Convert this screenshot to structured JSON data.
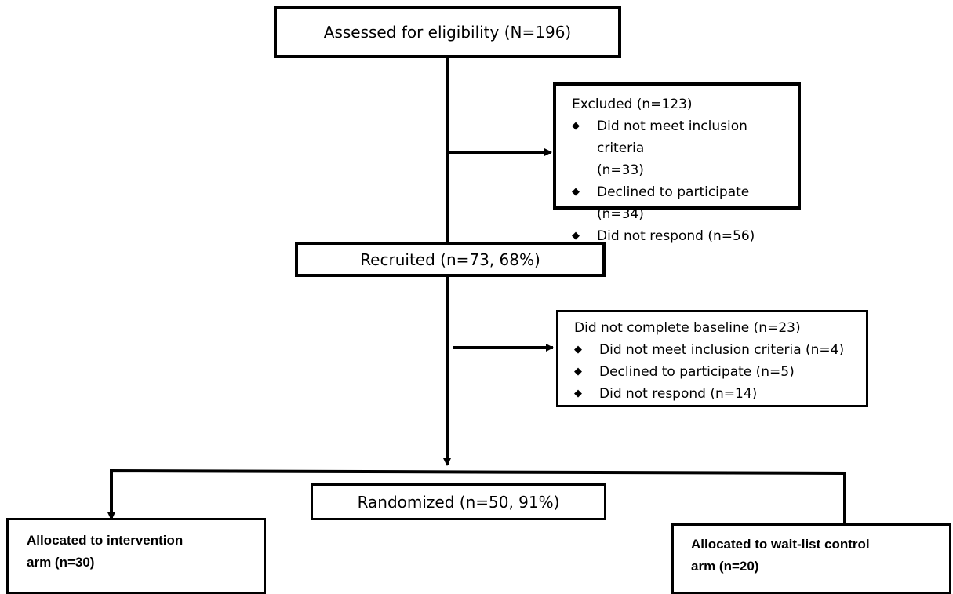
{
  "nodes": {
    "assessed": "Assessed for eligibility (N=196)",
    "recruited": "Recruited (n=73, 68%)",
    "randomized": "Randomized (n=50, 91%)"
  },
  "excluded": {
    "heading": "Excluded (n=123)",
    "items": [
      {
        "line1": "Did not meet inclusion criteria",
        "line2": "(n=33)"
      },
      {
        "line1": "Declined to participate (n=34)"
      },
      {
        "line1": "Did not respond (n=56)"
      }
    ]
  },
  "baseline": {
    "heading": "Did not complete baseline (n=23)",
    "items": [
      "Did not meet inclusion criteria (n=4)",
      "Declined to participate (n=5)",
      "Did not respond (n=14)"
    ]
  },
  "arms": {
    "intervention": {
      "line1": "Allocated to intervention",
      "line2": "arm (n=30)"
    },
    "control": {
      "line1": "Allocated to wait-list control",
      "line2": "arm (n=20)"
    }
  }
}
